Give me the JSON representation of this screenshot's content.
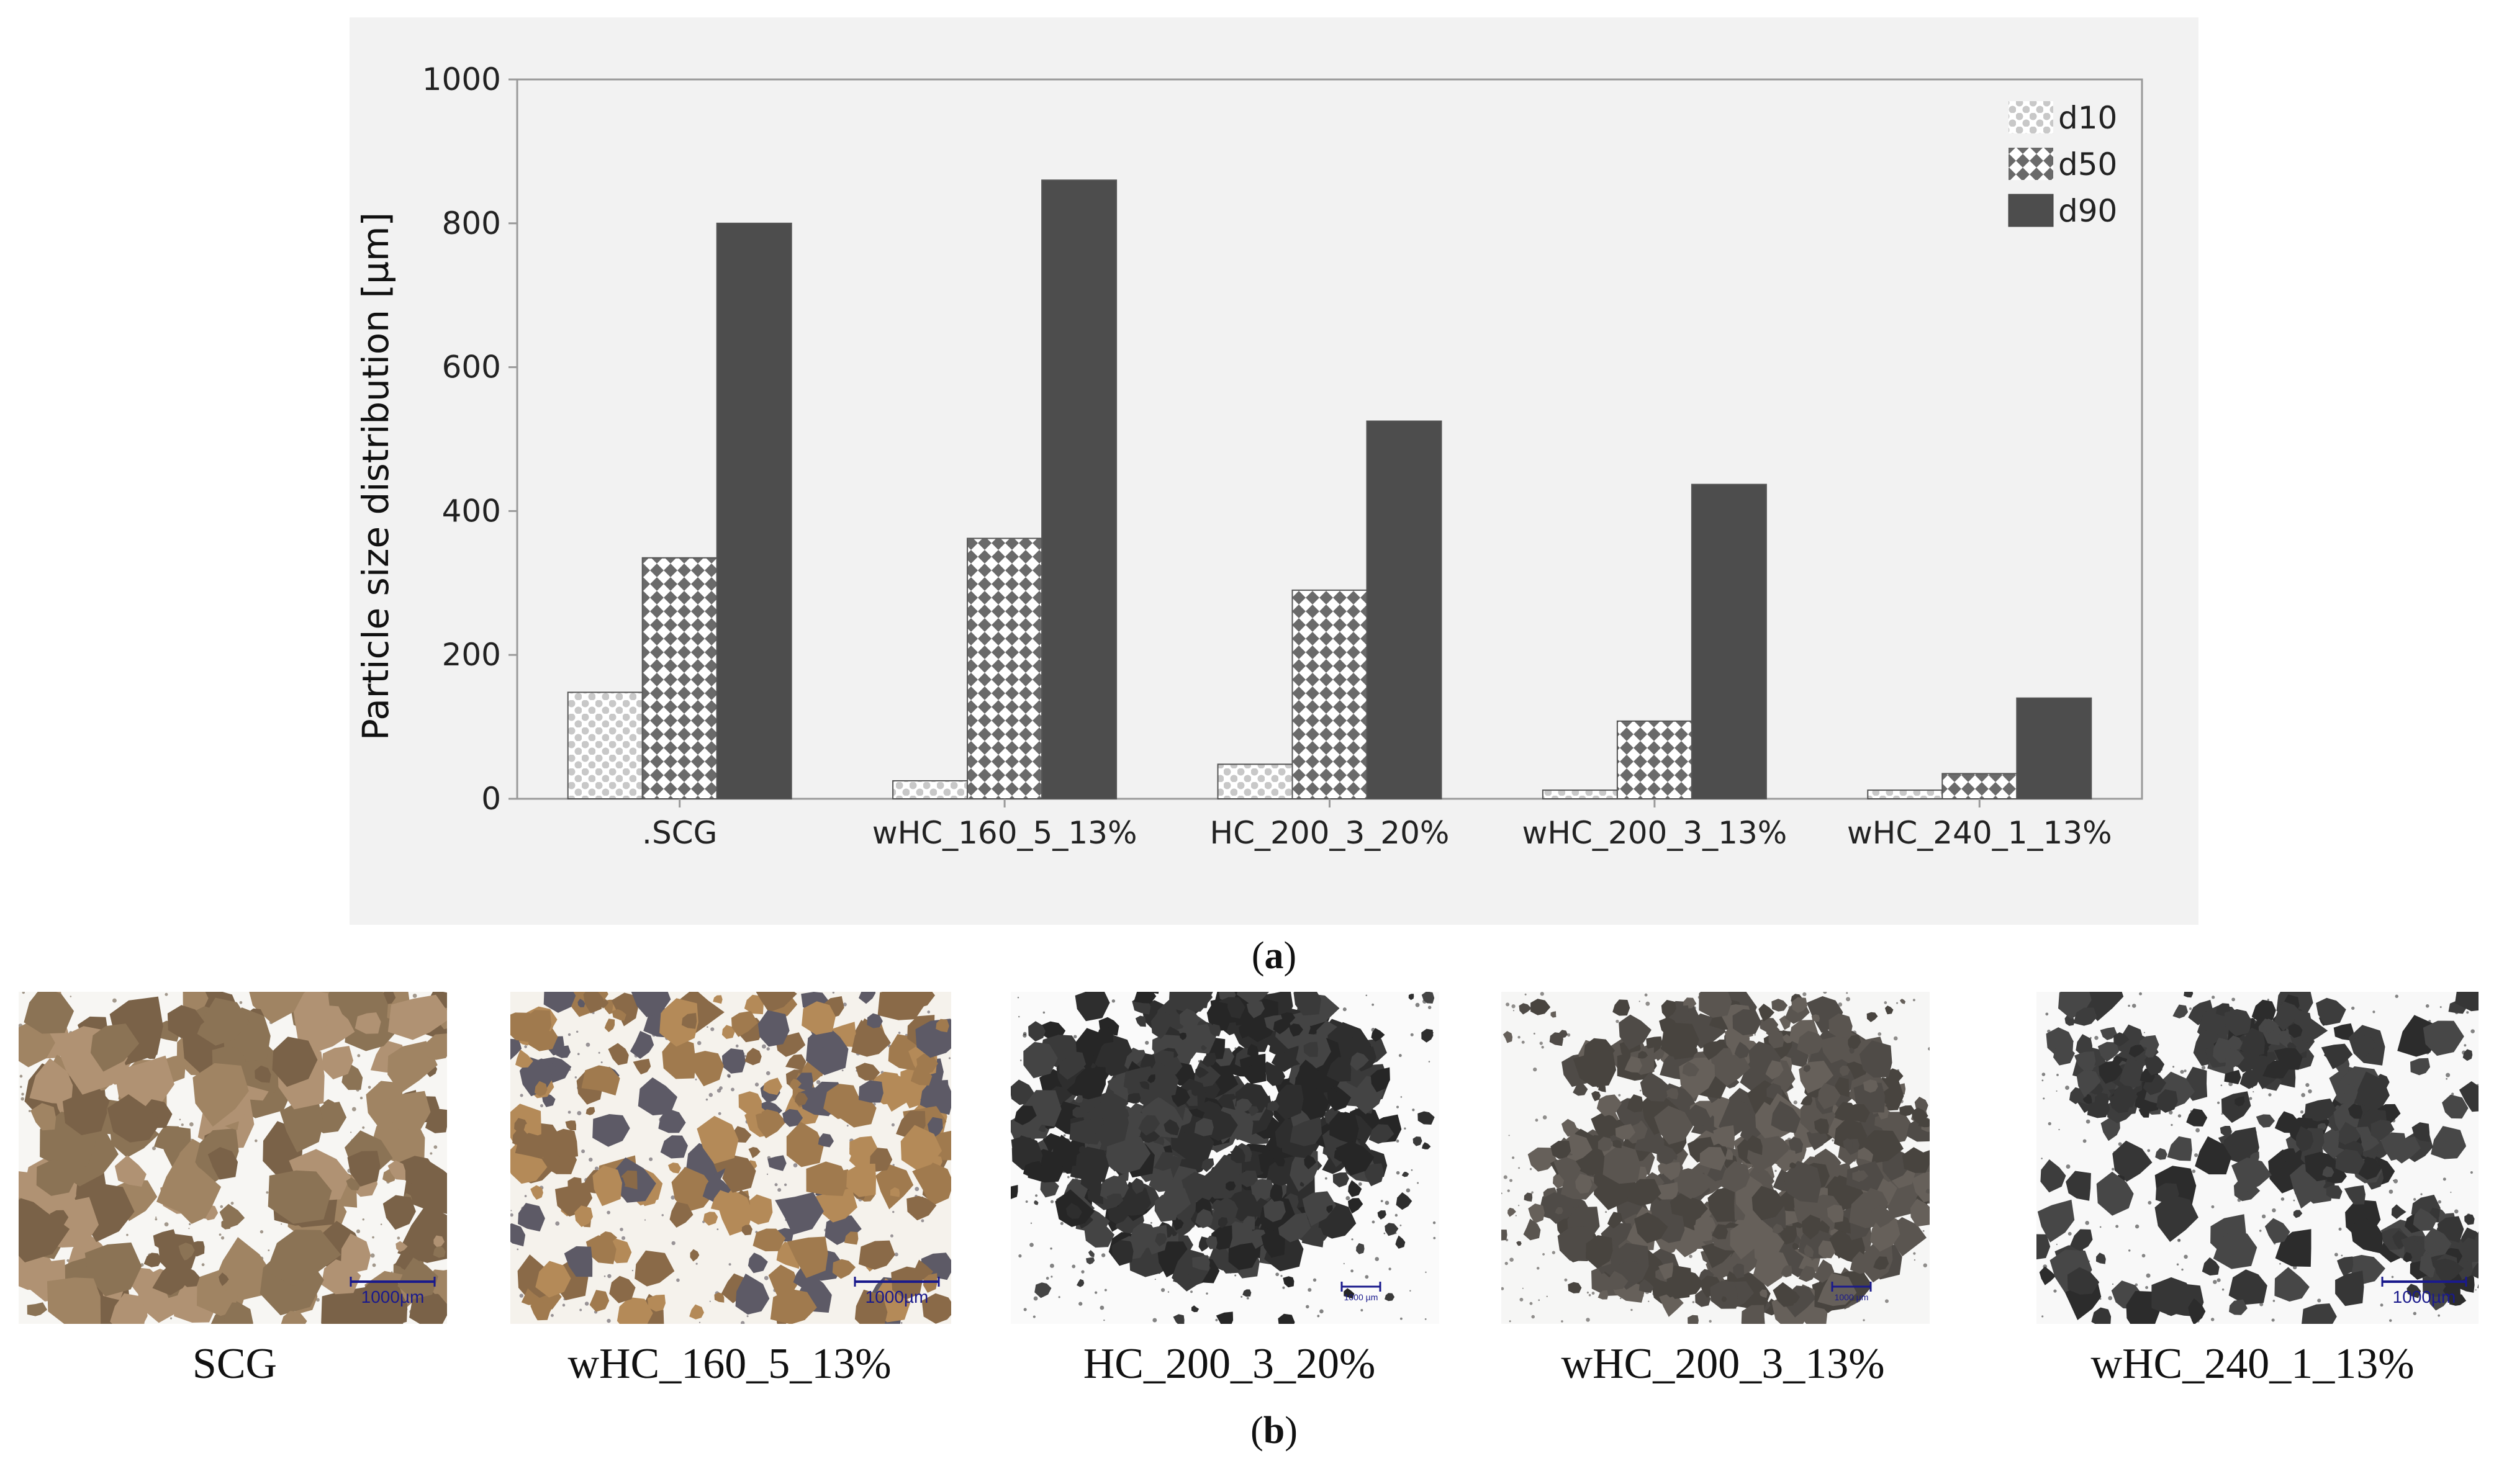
{
  "chart_data": {
    "type": "bar",
    "title": "",
    "xlabel": "",
    "ylabel": "Particle size distribution [µm]",
    "ylim": [
      0,
      1000
    ],
    "yticks": [
      0,
      200,
      400,
      600,
      800,
      1000
    ],
    "categories": [
      ".SCG",
      "wHC_160_5_13%",
      "HC_200_3_20%",
      "wHC_200_3_13%",
      "wHC_240_1_13%"
    ],
    "series": [
      {
        "name": "d10",
        "values": [
          148,
          25,
          48,
          12,
          12
        ],
        "pattern": "dots",
        "color": "#d4d4d4"
      },
      {
        "name": "d50",
        "values": [
          335,
          362,
          290,
          108,
          35
        ],
        "pattern": "diamonds",
        "color": "#666666"
      },
      {
        "name": "d90",
        "values": [
          800,
          860,
          525,
          437,
          140
        ],
        "pattern": "solid",
        "color": "#4a4a4a"
      }
    ],
    "grid": false,
    "legend_position": "top-right"
  },
  "captions": {
    "a": "a",
    "b": "b"
  },
  "micrographs": [
    {
      "label": "SCG",
      "scale_bar": "1000µm",
      "style": "light-brown"
    },
    {
      "label": "wHC_160_5_13%",
      "scale_bar": "1000µm",
      "style": "brown-dense"
    },
    {
      "label": "HC_200_3_20%",
      "scale_bar": "1000 µm",
      "style": "dark-cluster"
    },
    {
      "label": "wHC_200_3_13%",
      "scale_bar": "1000 µm",
      "style": "grey-cluster"
    },
    {
      "label": "wHC_240_1_13%",
      "scale_bar": "1000µm",
      "style": "dark-scattered"
    }
  ]
}
